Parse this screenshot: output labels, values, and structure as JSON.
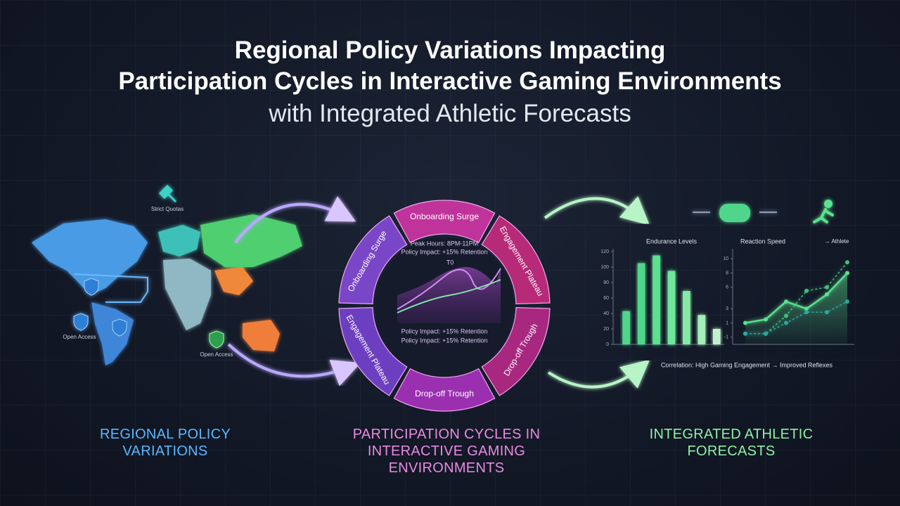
{
  "header": {
    "title_lines": [
      "Regional Policy Variations Impacting",
      "Participation Cycles in Interactive Gaming Environments"
    ],
    "subtitle": "with Integrated Athletic Forecasts"
  },
  "map": {
    "labels": [
      "Strict Quotas",
      "Open Access",
      "Open Access"
    ]
  },
  "cycle": {
    "segments": [
      "Onboarding Surge",
      "Engagement Plateau",
      "Drop-off Trough",
      "Drop-off Trough",
      "Engagement Plateau",
      "Onboarding Surge"
    ],
    "peak": "Peak Hours: 8PM-11PM",
    "impacts": [
      "Policy Impact: +15% Retention",
      "Policy Impact: +15% Retention",
      "Policy Impact: +15% Retention"
    ],
    "marker": "T0"
  },
  "chart_data": [
    {
      "type": "bar",
      "title": "Endurance Levels",
      "categories": [
        null,
        null,
        null,
        null,
        null,
        null,
        null
      ],
      "values": [
        43,
        105,
        115,
        95,
        69,
        38,
        20
      ],
      "colors": [
        "#4fd68a",
        "#4fd68a",
        "#5be08f",
        "#6ee79a",
        "#86eaa6",
        "#a4eeb9",
        "#bff3cd"
      ],
      "ylim": [
        0,
        120
      ],
      "yticks": [
        0,
        20,
        40,
        60,
        80,
        100,
        120
      ]
    },
    {
      "type": "line",
      "title": "Reaction Speed",
      "annotation": "→ Athlete",
      "categories": [
        null,
        null,
        null,
        null,
        null,
        null
      ],
      "series": [
        {
          "color": "#5be08f",
          "values": [
            1,
            1.5,
            4,
            3,
            5,
            8
          ],
          "area": true
        },
        {
          "color": "#3fc27a",
          "values": [
            -0.5,
            -0.5,
            2,
            5.5,
            6,
            9.5
          ],
          "dashed": true
        },
        {
          "color": "#2fa6a0",
          "values": [
            -0.5,
            -0.5,
            1,
            2.5,
            2.5,
            4
          ],
          "dashed": true
        }
      ],
      "ylim": [
        -2,
        11
      ],
      "yticks": [
        -1,
        1,
        3,
        6,
        8,
        10
      ]
    }
  ],
  "caption": "Correlation: High Gaming Engagement → Improved Reflexes",
  "sections": [
    "REGIONAL POLICY VARIATIONS",
    "PARTICIPATION CYCLES IN INTERACTIVE GAMING ENVIRONMENTS",
    "INTEGRATED ATHLETIC FORECASTS"
  ]
}
